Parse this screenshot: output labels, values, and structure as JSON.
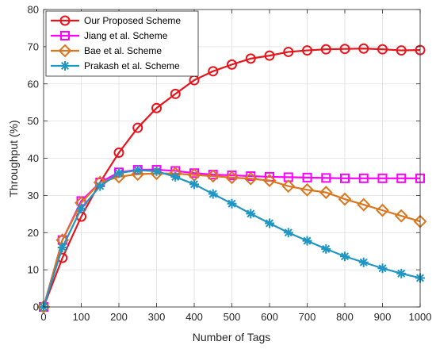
{
  "chart_data": {
    "type": "line",
    "title": "",
    "xlabel": "Number of Tags",
    "ylabel": "Throughput (%)",
    "xlim": [
      0,
      1000
    ],
    "ylim": [
      0,
      80
    ],
    "xticks": [
      0,
      100,
      200,
      300,
      400,
      500,
      600,
      700,
      800,
      900,
      1000
    ],
    "yticks": [
      0,
      10,
      20,
      30,
      40,
      50,
      60,
      70,
      80
    ],
    "grid": true,
    "legend_position": "top-left",
    "x": [
      0,
      50,
      100,
      150,
      200,
      250,
      300,
      350,
      400,
      450,
      500,
      550,
      600,
      650,
      700,
      750,
      800,
      850,
      900,
      950,
      1000
    ],
    "series": [
      {
        "name": "Our Proposed Scheme",
        "color": "#e8141b",
        "marker": "circle",
        "values": [
          0,
          13.2,
          24.3,
          33.5,
          41.5,
          48.2,
          53.5,
          57.3,
          61.0,
          63.4,
          65.2,
          66.8,
          67.6,
          68.6,
          69.0,
          69.3,
          69.4,
          69.5,
          69.3,
          69.0,
          69.1
        ]
      },
      {
        "name": "Jiang et al. Scheme",
        "color": "#ff00ff",
        "marker": "square",
        "values": [
          0,
          18.0,
          28.5,
          33.5,
          36.2,
          36.9,
          36.9,
          36.6,
          36.0,
          35.6,
          35.4,
          35.2,
          35.0,
          34.9,
          34.8,
          34.7,
          34.6,
          34.6,
          34.6,
          34.6,
          34.6
        ]
      },
      {
        "name": "Bae et al. Scheme",
        "color": "#d9761e",
        "marker": "diamond",
        "values": [
          0,
          18.0,
          28.0,
          33.5,
          35.0,
          35.7,
          35.9,
          35.9,
          35.5,
          35.2,
          34.8,
          34.5,
          34.0,
          32.5,
          31.5,
          30.8,
          29.0,
          27.5,
          26.0,
          24.5,
          23.0
        ]
      },
      {
        "name": "Prakash et al. Scheme",
        "color": "#1f96c4",
        "marker": "asterisk",
        "values": [
          0,
          16.0,
          26.5,
          32.5,
          36.0,
          36.8,
          36.5,
          35.0,
          33.0,
          30.4,
          27.8,
          25.1,
          22.5,
          20.0,
          17.8,
          15.6,
          13.6,
          12.0,
          10.4,
          9.0,
          7.8
        ]
      }
    ]
  }
}
